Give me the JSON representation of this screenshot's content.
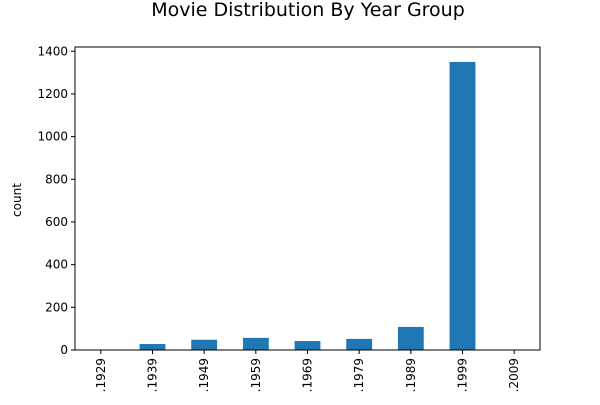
{
  "chart_data": {
    "type": "bar",
    "title": "Movie Distribution By Year Group",
    "xlabel": "",
    "ylabel": "count",
    "categories": [
      ".1929",
      ".1939",
      ".1949",
      ".1959",
      ".1969",
      ".1979",
      ".1989",
      ".1999",
      ".2009"
    ],
    "values": [
      2,
      28,
      48,
      57,
      42,
      52,
      108,
      1350,
      0
    ],
    "ylim": [
      0,
      1420
    ],
    "yticks": [
      0,
      200,
      400,
      600,
      800,
      1000,
      1200,
      1400
    ],
    "grid": false,
    "bar_color": "#1f77b4"
  }
}
